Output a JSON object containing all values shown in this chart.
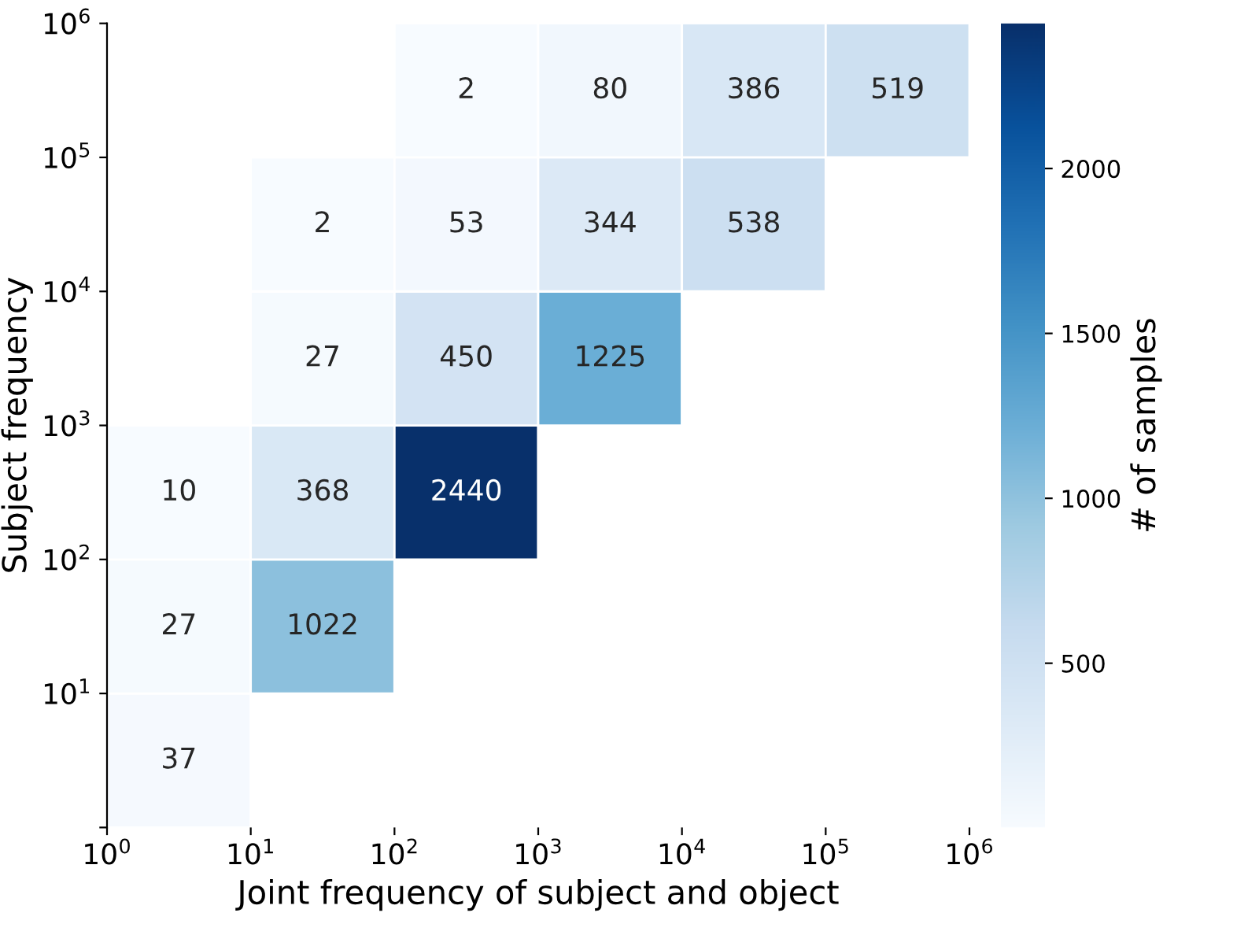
{
  "chart_data": {
    "type": "heatmap",
    "xlabel": "Joint frequency of subject and object",
    "ylabel": "Subject frequency",
    "clabel": "# of samples",
    "cells": [
      [
        null,
        null,
        2,
        80,
        386,
        519
      ],
      [
        null,
        2,
        53,
        344,
        538,
        null
      ],
      [
        null,
        27,
        450,
        1225,
        null,
        null
      ],
      [
        10,
        368,
        2440,
        null,
        null,
        null
      ],
      [
        27,
        1022,
        null,
        null,
        null,
        null
      ],
      [
        37,
        null,
        null,
        null,
        null,
        null
      ]
    ],
    "log": "xy",
    "xlim": [
      1,
      1000000
    ],
    "ylim": [
      1,
      1000000
    ],
    "xticks": [
      {
        "value": 1,
        "label": "10$^{0}$"
      },
      {
        "value": 10,
        "label": "10$^{1}$"
      },
      {
        "value": 100,
        "label": "10$^{2}$"
      },
      {
        "value": 1000,
        "label": "10$^{3}$"
      },
      {
        "value": 10000,
        "label": "10$^{4}$"
      },
      {
        "value": 100000,
        "label": "10$^{5}$"
      },
      {
        "value": 1000000,
        "label": "10$^{6}$"
      }
    ],
    "yticks": [
      {
        "value": 1,
        "label": null
      },
      {
        "value": 10,
        "label": "10$^{1}$"
      },
      {
        "value": 100,
        "label": "10$^{2}$"
      },
      {
        "value": 1000,
        "label": "10$^{3}$"
      },
      {
        "value": 10000,
        "label": "10$^{4}$"
      },
      {
        "value": 100000,
        "label": "10$^{5}$"
      },
      {
        "value": 1000000,
        "label": "10$^{6}$"
      }
    ],
    "clim": [
      2,
      2440
    ],
    "cticks": [
      500,
      1000,
      1500,
      2000
    ],
    "data_labels": true,
    "grid": false
  }
}
